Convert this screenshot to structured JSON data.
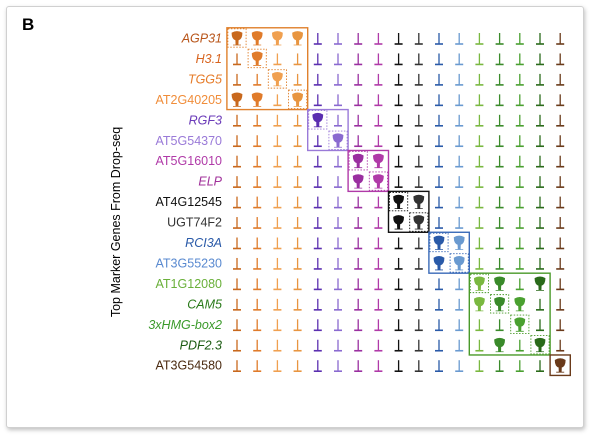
{
  "panel_label": "B",
  "chart_data": {
    "type": "violin",
    "title": "",
    "ylabel": "Top Marker Genes From Drop-seq",
    "xlabel": "",
    "genes": [
      {
        "name": "AGP31",
        "italic": true,
        "cluster": 0
      },
      {
        "name": "H3.1",
        "italic": true,
        "cluster": 0
      },
      {
        "name": "TGG5",
        "italic": true,
        "cluster": 0
      },
      {
        "name": "AT2G40205",
        "italic": false,
        "cluster": 0
      },
      {
        "name": "RGF3",
        "italic": true,
        "cluster": 1
      },
      {
        "name": "AT5G54370",
        "italic": false,
        "cluster": 2
      },
      {
        "name": "AT5G16010",
        "italic": false,
        "cluster": 3
      },
      {
        "name": "ELP",
        "italic": true,
        "cluster": 3
      },
      {
        "name": "AT4G12545",
        "italic": false,
        "cluster": 4
      },
      {
        "name": "UGT74F2",
        "italic": false,
        "cluster": 4
      },
      {
        "name": "RCI3A",
        "italic": true,
        "cluster": 5
      },
      {
        "name": "AT3G55230",
        "italic": false,
        "cluster": 6
      },
      {
        "name": "AT1G12080",
        "italic": false,
        "cluster": 7
      },
      {
        "name": "CAM5",
        "italic": true,
        "cluster": 8
      },
      {
        "name": "3xHMG-box2",
        "italic": true,
        "cluster": 9
      },
      {
        "name": "PDF2.3",
        "italic": true,
        "cluster": 10
      },
      {
        "name": "AT3G54580",
        "italic": false,
        "cluster": 11
      }
    ],
    "clusters": [
      {
        "color": "#c8681d"
      },
      {
        "color": "#e07b2a"
      },
      {
        "color": "#f0a050"
      },
      {
        "color": "#e89540"
      },
      {
        "color": "#5b2fb0"
      },
      {
        "color": "#8a6ad0"
      },
      {
        "color": "#9a2fa0"
      },
      {
        "color": "#b03aa8"
      },
      {
        "color": "#111111"
      },
      {
        "color": "#333333"
      },
      {
        "color": "#2a5aa8"
      },
      {
        "color": "#6a9ad0"
      },
      {
        "color": "#7ab840"
      },
      {
        "color": "#3a8a2a"
      },
      {
        "color": "#4aa030"
      },
      {
        "color": "#2a6a1a"
      },
      {
        "color": "#6a3a1a"
      }
    ],
    "label_colors": [
      "#b8551a",
      "#d8641f",
      "#e67c2a",
      "#f08d3a",
      "#6a3ab8",
      "#9a7ad8",
      "#b03aa8",
      "#a0309a",
      "#111111",
      "#333333",
      "#2a5aa8",
      "#5a8ad0",
      "#6ab03a",
      "#2a7a1a",
      "#3a9a2a",
      "#1a5a10",
      "#4a2a10"
    ],
    "high_expression": [
      [
        0,
        0
      ],
      [
        0,
        1
      ],
      [
        0,
        2
      ],
      [
        0,
        3
      ],
      [
        1,
        1
      ],
      [
        2,
        2
      ],
      [
        3,
        0
      ],
      [
        3,
        1
      ],
      [
        3,
        3
      ],
      [
        4,
        4
      ],
      [
        5,
        5
      ],
      [
        6,
        6
      ],
      [
        6,
        7
      ],
      [
        7,
        6
      ],
      [
        7,
        7
      ],
      [
        8,
        8
      ],
      [
        8,
        9
      ],
      [
        9,
        8
      ],
      [
        9,
        9
      ],
      [
        10,
        10
      ],
      [
        10,
        11
      ],
      [
        11,
        10
      ],
      [
        11,
        11
      ],
      [
        12,
        12
      ],
      [
        12,
        13
      ],
      [
        12,
        15
      ],
      [
        13,
        12
      ],
      [
        13,
        13
      ],
      [
        13,
        14
      ],
      [
        14,
        14
      ],
      [
        15,
        13
      ],
      [
        15,
        15
      ],
      [
        16,
        16
      ]
    ],
    "boxes": [
      {
        "rows": [
          0,
          3
        ],
        "cols": [
          0,
          3
        ],
        "color": "#e0812d"
      },
      {
        "rows": [
          4,
          5
        ],
        "cols": [
          4,
          5
        ],
        "color": "#9a7ad8"
      },
      {
        "rows": [
          6,
          7
        ],
        "cols": [
          6,
          7
        ],
        "color": "#b03aa8"
      },
      {
        "rows": [
          8,
          9
        ],
        "cols": [
          8,
          9
        ],
        "color": "#111111"
      },
      {
        "rows": [
          10,
          11
        ],
        "cols": [
          10,
          11
        ],
        "color": "#3a6ab8"
      },
      {
        "rows": [
          12,
          15
        ],
        "cols": [
          12,
          15
        ],
        "color": "#4a9a2a"
      },
      {
        "rows": [
          16,
          16
        ],
        "cols": [
          16,
          16
        ],
        "color": "#6a3a1a"
      }
    ]
  }
}
